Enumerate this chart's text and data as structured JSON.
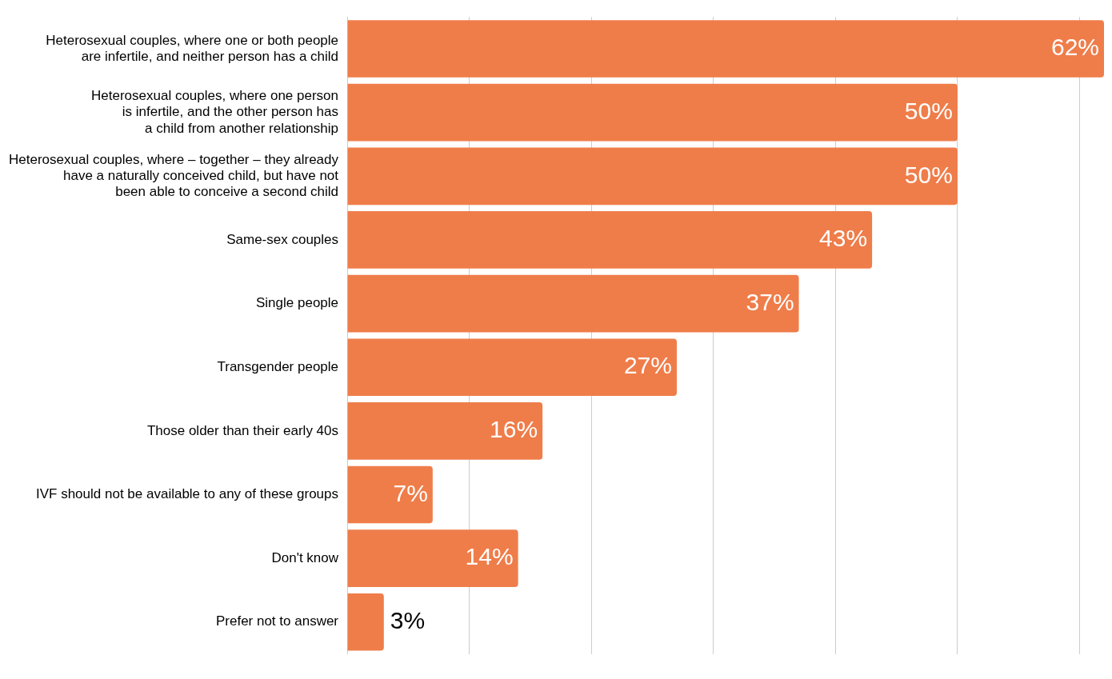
{
  "chart_data": {
    "type": "bar",
    "orientation": "horizontal",
    "categories": [
      "Heterosexual couples, where one or both people\nare infertile, and neither person has a child",
      "Heterosexual couples, where one person\nis infertile, and the other person has\na child from another relationship",
      "Heterosexual couples, where – together – they already\nhave a naturally conceived child, but have not\nbeen able to conceive a second child",
      "Same-sex couples",
      "Single people",
      "Transgender people",
      "Those older than their early 40s",
      "IVF should not be available to any of these groups",
      "Don't know",
      "Prefer not to answer"
    ],
    "values": [
      62,
      50,
      50,
      43,
      37,
      27,
      16,
      7,
      14,
      3
    ],
    "value_labels": [
      "62%",
      "50%",
      "50%",
      "43%",
      "37%",
      "27%",
      "16%",
      "7%",
      "14%",
      "3%"
    ],
    "color": "#ef7d4a",
    "xlim": [
      0,
      62
    ],
    "xticks": [
      {
        "value": 0,
        "label": null
      },
      {
        "value": 10,
        "label": null
      },
      {
        "value": 20,
        "label": null
      },
      {
        "value": 30,
        "label": null
      },
      {
        "value": 40,
        "label": null
      },
      {
        "value": 50,
        "label": null
      },
      {
        "value": 60,
        "label": null
      }
    ],
    "grid": "x",
    "tick_labels": "y",
    "legend": false
  }
}
